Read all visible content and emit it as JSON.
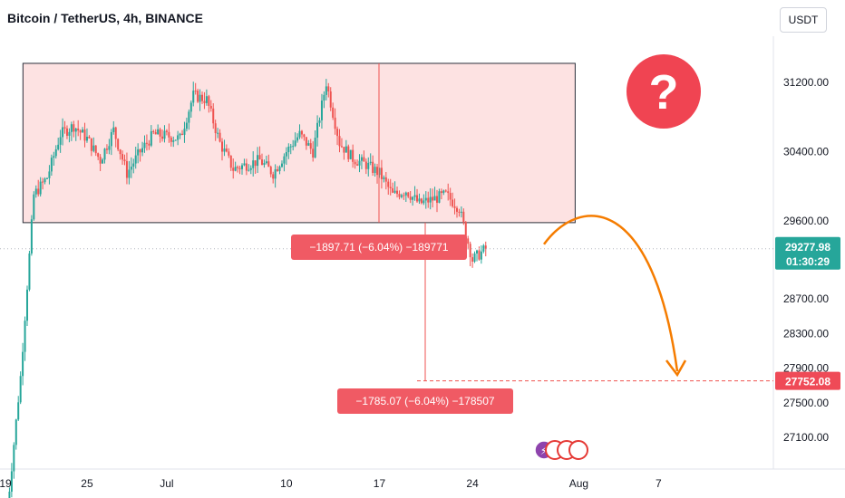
{
  "header": {
    "title": "Bitcoin / TetherUS, 4h, BINANCE",
    "currency": "USDT"
  },
  "colors": {
    "up": "#26a69a",
    "down": "#ef5350",
    "zone_fill": "#fde2e2",
    "accent_orange": "#f57c00",
    "badge_red": "#ef4a57",
    "price_green": "#26a69a"
  },
  "chart_data": {
    "type": "candlestick",
    "title": "Bitcoin / TetherUS, 4h, BINANCE",
    "x_tick_labels": [
      "19",
      "25",
      "Jul",
      "10",
      "17",
      "24",
      "Aug",
      "7"
    ],
    "y_ticks": [
      27100,
      27500,
      27900,
      28300,
      28700,
      29600,
      30400,
      31200
    ],
    "y_tick_labels": [
      "27100.00",
      "27500.00",
      "27900.00",
      "28300.00",
      "28700.00",
      "29600.00",
      "30400.00",
      "31200.00"
    ],
    "current_price": "29277.98",
    "countdown": "01:30:29",
    "target_price": "27752.08",
    "range_zone": {
      "top": 31420,
      "bottom": 29580,
      "start": "2023-06-21",
      "end": "2023-08-01"
    },
    "price_path": [
      [
        "2023-06-19",
        26250
      ],
      [
        "2023-06-20",
        27800
      ],
      [
        "2023-06-21",
        29900
      ],
      [
        "2023-06-22",
        30100
      ],
      [
        "2023-06-23",
        30600
      ],
      [
        "2023-06-24",
        30700
      ],
      [
        "2023-06-25",
        30550
      ],
      [
        "2023-06-26",
        30300
      ],
      [
        "2023-06-27",
        30650
      ],
      [
        "2023-06-28",
        30150
      ],
      [
        "2023-06-29",
        30400
      ],
      [
        "2023-06-30",
        30600
      ],
      [
        "2023-07-01",
        30580
      ],
      [
        "2023-07-02",
        30550
      ],
      [
        "2023-07-03",
        31050
      ],
      [
        "2023-07-04",
        31000
      ],
      [
        "2023-07-05",
        30500
      ],
      [
        "2023-07-06",
        30200
      ],
      [
        "2023-07-07",
        30250
      ],
      [
        "2023-07-08",
        30300
      ],
      [
        "2023-07-09",
        30150
      ],
      [
        "2023-07-10",
        30400
      ],
      [
        "2023-07-11",
        30600
      ],
      [
        "2023-07-12",
        30400
      ],
      [
        "2023-07-13",
        31200
      ],
      [
        "2023-07-14",
        30500
      ],
      [
        "2023-07-15",
        30320
      ],
      [
        "2023-07-16",
        30250
      ],
      [
        "2023-07-17",
        30150
      ],
      [
        "2023-07-18",
        29900
      ],
      [
        "2023-07-19",
        29950
      ],
      [
        "2023-07-20",
        29800
      ],
      [
        "2023-07-21",
        29850
      ],
      [
        "2023-07-22",
        29900
      ],
      [
        "2023-07-23",
        29750
      ],
      [
        "2023-07-24",
        29150
      ],
      [
        "2023-07-25",
        29277.98
      ]
    ],
    "measurements": [
      {
        "label": "−1897.71 (−6.04%) −189771"
      },
      {
        "label": "−1785.07 (−6.04%) −178507"
      }
    ],
    "projection": "arc up then down to target"
  }
}
